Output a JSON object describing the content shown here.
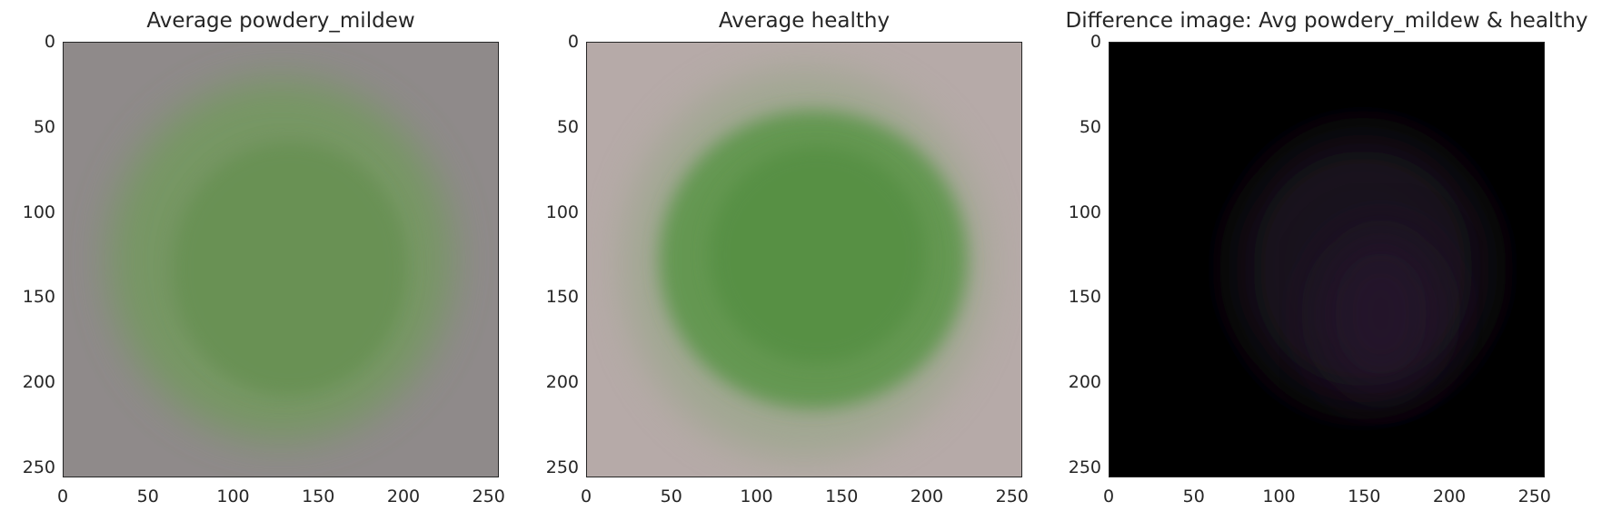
{
  "panels": [
    {
      "title": "Average powdery_mildew",
      "background": "#8f8a8a",
      "blob": "#6e9b56",
      "blob_dark": "#5f8d49"
    },
    {
      "title": "Average healthy",
      "background": "#b6aaa8",
      "blob": "#5a9546",
      "blob_dark": "#4f8c3d"
    },
    {
      "title": "Difference image: Avg powdery_mildew & healthy",
      "background": "#000000",
      "blob": "#1f1220",
      "blob_dark": "#2a1530"
    }
  ],
  "axes": {
    "x_ticks": [
      "0",
      "50",
      "100",
      "150",
      "200",
      "250"
    ],
    "y_ticks": [
      "0",
      "50",
      "100",
      "150",
      "200",
      "250"
    ],
    "xlim": [
      0,
      256
    ],
    "ylim": [
      256,
      0
    ]
  }
}
